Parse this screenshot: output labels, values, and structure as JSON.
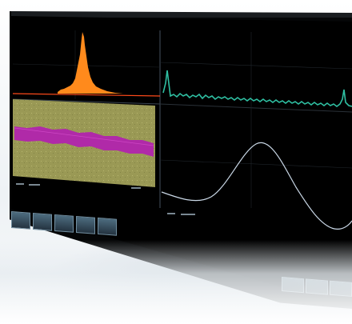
{
  "app": {
    "product": "oscilloscope-display",
    "accent_colors": {
      "histogram": "#ff8a1c",
      "histogram_line": "#ff4a1a",
      "trend_band": "#b02aa8",
      "trend_bg": "#9c9b56",
      "top_trace": "#2fbfa2",
      "sine_trace": "#c9d7e6",
      "softkey": "#4d6c7f",
      "screen": "#000000"
    },
    "icons": [
      "softkey-button-icon",
      "action-button-icon"
    ]
  },
  "measurements": {
    "headers": [
      "",
      "",
      "",
      ""
    ],
    "rows": [
      [
        "",
        "",
        "",
        ""
      ],
      [
        "",
        "",
        "",
        ""
      ],
      [
        "",
        "",
        "",
        ""
      ],
      [
        "",
        "",
        "",
        ""
      ],
      [
        "",
        "",
        "",
        ""
      ],
      [
        "",
        "",
        "",
        ""
      ],
      [
        "",
        "",
        "",
        ""
      ],
      [
        "",
        "",
        "",
        ""
      ],
      [
        "",
        "",
        "",
        ""
      ],
      [
        "",
        "",
        "",
        ""
      ]
    ]
  },
  "softkeys": [
    {
      "name": "softkey-1",
      "label": ""
    },
    {
      "name": "softkey-2",
      "label": ""
    },
    {
      "name": "softkey-3",
      "label": ""
    },
    {
      "name": "softkey-4",
      "label": ""
    },
    {
      "name": "softkey-5",
      "label": ""
    }
  ],
  "action_buttons": [
    {
      "name": "action-button-1",
      "label": ""
    },
    {
      "name": "action-button-2",
      "label": ""
    },
    {
      "name": "action-button-3",
      "label": ""
    }
  ]
}
